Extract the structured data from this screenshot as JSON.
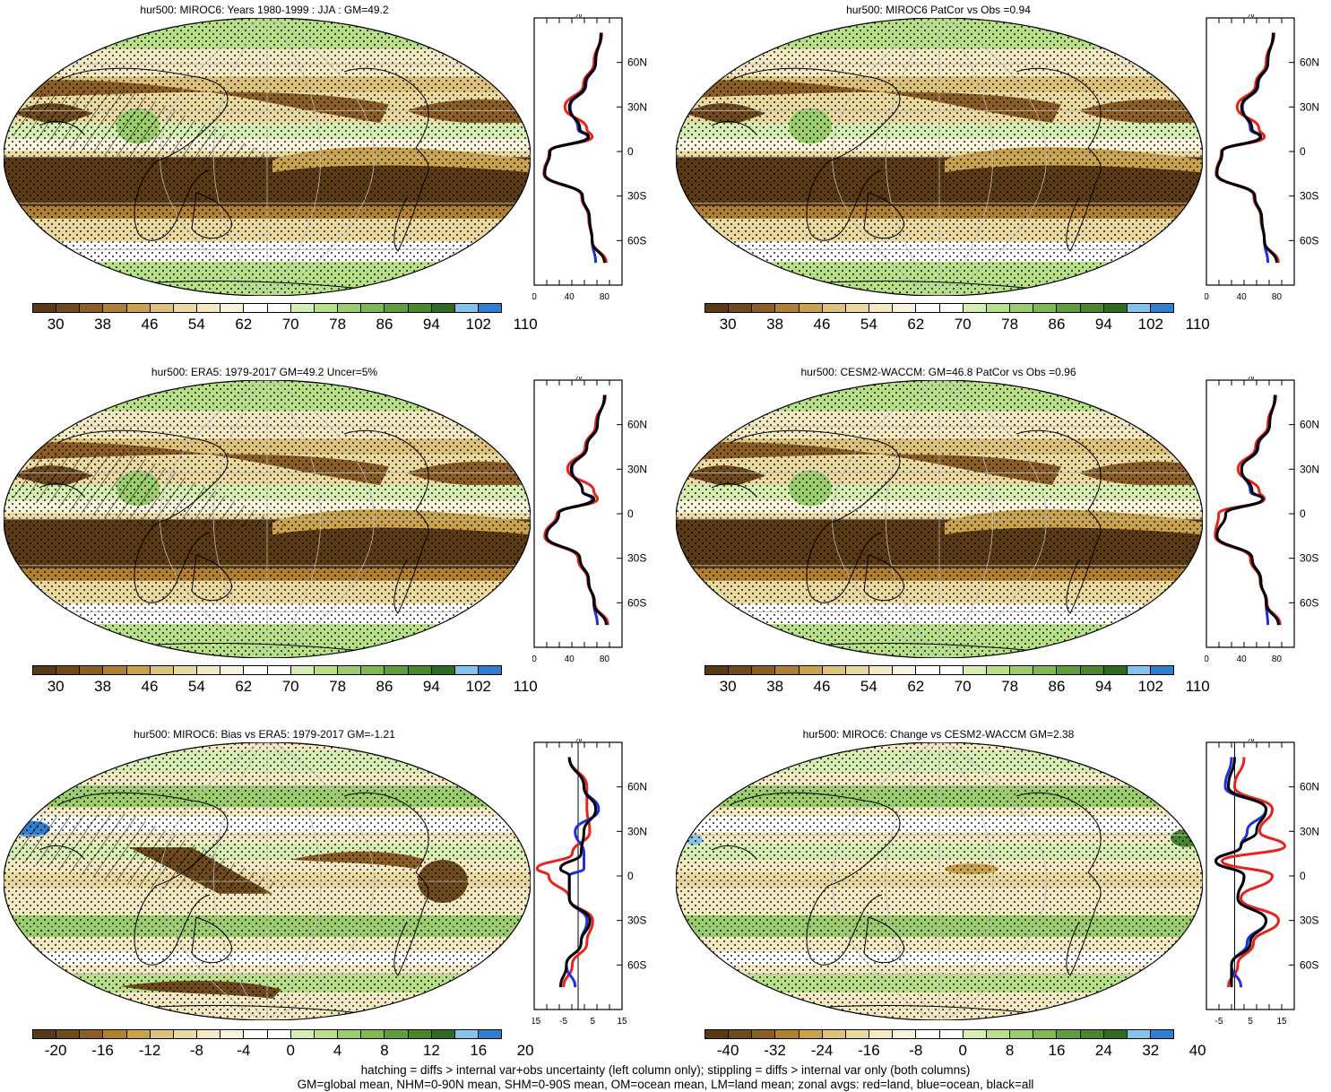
{
  "panels": [
    {
      "id": "p1",
      "title": "hur500: MIROC6: Years 1980-1999 : JJA : GM=49.2",
      "kind": "abs",
      "hatch": true,
      "colorbar_labels": [
        "30",
        "38",
        "46",
        "54",
        "62",
        "70",
        "78",
        "86",
        "94",
        "102",
        "110"
      ],
      "zonal_ticks": [
        "0",
        "40",
        "80"
      ],
      "zonal_xlim": [
        0,
        100
      ]
    },
    {
      "id": "p2",
      "title": "hur500: MIROC6 PatCor vs Obs =0.94",
      "kind": "abs",
      "hatch": false,
      "colorbar_labels": [
        "30",
        "38",
        "46",
        "54",
        "62",
        "70",
        "78",
        "86",
        "94",
        "102",
        "110"
      ],
      "zonal_ticks": [
        "0",
        "40",
        "80"
      ],
      "zonal_xlim": [
        0,
        100
      ]
    },
    {
      "id": "p3",
      "title": "hur500: ERA5: 1979-2017 GM=49.2 Uncer=5%",
      "kind": "abs",
      "hatch": true,
      "colorbar_labels": [
        "30",
        "38",
        "46",
        "54",
        "62",
        "70",
        "78",
        "86",
        "94",
        "102",
        "110"
      ],
      "zonal_ticks": [
        "0",
        "40",
        "80"
      ],
      "zonal_xlim": [
        0,
        100
      ]
    },
    {
      "id": "p4",
      "title": "hur500: CESM2-WACCM: GM=46.8 PatCor vs Obs =0.96",
      "kind": "abs",
      "hatch": false,
      "colorbar_labels": [
        "30",
        "38",
        "46",
        "54",
        "62",
        "70",
        "78",
        "86",
        "94",
        "102",
        "110"
      ],
      "zonal_ticks": [
        "0",
        "40",
        "80"
      ],
      "zonal_xlim": [
        0,
        100
      ]
    },
    {
      "id": "p5",
      "title": "hur500: MIROC6: Bias vs ERA5: 1979-2017 GM=-1.21",
      "kind": "bias",
      "hatch": true,
      "colorbar_labels": [
        "-20",
        "-16",
        "-12",
        "-8",
        "-4",
        "0",
        "4",
        "8",
        "12",
        "16",
        "20"
      ],
      "zonal_ticks": [
        "-15",
        "-5",
        "5",
        "15"
      ],
      "zonal_xlim": [
        -15,
        15
      ]
    },
    {
      "id": "p6",
      "title": "hur500: MIROC6: Change vs CESM2-WACCM GM=2.38",
      "kind": "bias",
      "hatch": false,
      "colorbar_labels": [
        "-40",
        "-32",
        "-24",
        "-16",
        "-8",
        "0",
        "8",
        "16",
        "24",
        "32",
        "40"
      ],
      "zonal_ticks": [
        "-5",
        "5",
        "15"
      ],
      "zonal_xlim": [
        -9,
        19
      ]
    }
  ],
  "zonal_unit": "%",
  "lat_labels": [
    "60N",
    "30N",
    "0",
    "30S",
    "60S"
  ],
  "palette": [
    "#5a3a12",
    "#6e4a1c",
    "#8b5e24",
    "#b08030",
    "#c9a24c",
    "#dcc27a",
    "#ebd9a2",
    "#f3e9c4",
    "#f7f3dd",
    "#ffffff",
    "#ffffff",
    "#d6edb4",
    "#b8df8a",
    "#9ccd6c",
    "#7fb950",
    "#5f9e3c",
    "#4a862e",
    "#2f6a22",
    "#86c3ea",
    "#2f7fd0"
  ],
  "chart_data": [
    {
      "type": "heatmap",
      "title": "hur500: MIROC6: Years 1980-1999 : JJA : GM=49.2",
      "lat": [
        80,
        60,
        45,
        30,
        15,
        10,
        0,
        -15,
        -30,
        -45,
        -60,
        -75
      ],
      "zonal_mean_all": [
        76,
        70,
        58,
        40,
        52,
        62,
        18,
        12,
        55,
        63,
        66,
        80
      ],
      "zonal_mean_land": [
        77,
        68,
        56,
        35,
        60,
        66,
        17,
        11,
        54,
        62,
        66,
        82
      ],
      "zonal_mean_ocean": [
        76,
        70,
        59,
        41,
        50,
        61,
        18,
        12,
        55,
        63,
        66,
        70
      ]
    },
    {
      "type": "heatmap",
      "title": "hur500: MIROC6 PatCor vs Obs =0.94",
      "lat": [
        80,
        60,
        45,
        30,
        15,
        10,
        0,
        -15,
        -30,
        -45,
        -60,
        -75
      ],
      "zonal_mean_all": [
        76,
        70,
        58,
        40,
        52,
        62,
        18,
        12,
        55,
        63,
        66,
        80
      ],
      "zonal_mean_land": [
        77,
        68,
        56,
        35,
        60,
        66,
        17,
        11,
        54,
        62,
        66,
        82
      ],
      "zonal_mean_ocean": [
        76,
        70,
        59,
        41,
        50,
        61,
        18,
        12,
        55,
        63,
        66,
        70
      ]
    },
    {
      "type": "heatmap",
      "title": "hur500: ERA5: 1979-2017 GM=49.2 Uncer=5%",
      "lat": [
        80,
        60,
        45,
        30,
        15,
        10,
        0,
        -15,
        -30,
        -45,
        -60,
        -75
      ],
      "zonal_mean_all": [
        80,
        72,
        60,
        42,
        55,
        68,
        28,
        14,
        52,
        62,
        68,
        82
      ],
      "zonal_mean_land": [
        81,
        70,
        58,
        38,
        68,
        72,
        26,
        12,
        50,
        61,
        69,
        84
      ],
      "zonal_mean_ocean": [
        80,
        72,
        60,
        43,
        55,
        66,
        28,
        14,
        52,
        62,
        68,
        72
      ]
    },
    {
      "type": "heatmap",
      "title": "hur500: CESM2-WACCM: GM=46.8 PatCor vs Obs =0.96",
      "lat": [
        80,
        60,
        45,
        30,
        15,
        10,
        0,
        -15,
        -30,
        -45,
        -60,
        -75
      ],
      "zonal_mean_all": [
        78,
        72,
        58,
        40,
        52,
        64,
        22,
        12,
        52,
        62,
        68,
        82
      ],
      "zonal_mean_land": [
        79,
        70,
        56,
        36,
        60,
        66,
        14,
        10,
        50,
        61,
        69,
        84
      ],
      "zonal_mean_ocean": [
        78,
        72,
        59,
        40,
        50,
        64,
        22,
        12,
        52,
        62,
        68,
        70
      ]
    },
    {
      "type": "heatmap",
      "title": "hur500: MIROC6: Bias vs ERA5: 1979-2017 GM=-1.21",
      "lat": [
        80,
        60,
        45,
        30,
        15,
        5,
        0,
        -15,
        -30,
        -45,
        -60,
        -75
      ],
      "zonal_mean_all": [
        -3,
        2,
        6,
        2,
        1,
        -6,
        -3,
        -3,
        4,
        1,
        -4,
        -6
      ],
      "zonal_mean_land": [
        -3,
        3,
        3,
        4,
        -2,
        -14,
        -10,
        -3,
        5,
        3,
        -2,
        -5
      ],
      "zonal_mean_ocean": [
        -3,
        2,
        7,
        -1,
        2,
        2,
        -3,
        -3,
        3,
        1,
        -4,
        -1
      ]
    },
    {
      "type": "heatmap",
      "title": "hur500: MIROC6: Change vs CESM2-WACCM GM=2.38",
      "lat": [
        80,
        60,
        45,
        30,
        20,
        10,
        0,
        -15,
        -30,
        -45,
        -60,
        -75
      ],
      "zonal_mean_all": [
        0,
        -2,
        10,
        7,
        2,
        -6,
        3,
        1,
        10,
        5,
        -1,
        -1
      ],
      "zonal_mean_land": [
        3,
        0,
        12,
        8,
        16,
        -4,
        12,
        2,
        14,
        6,
        1,
        -2
      ],
      "zonal_mean_ocean": [
        -1,
        -3,
        10,
        4,
        2,
        -6,
        3,
        1,
        10,
        4,
        -1,
        2
      ]
    }
  ],
  "footer": {
    "line1": "hatching = diffs > internal var+obs uncertainty (left column only); stippling = diffs > internal var only (both columns)",
    "line2": "GM=global mean, NHM=0-90N mean, SHM=0-90S mean, OM=ocean mean, LM=land mean; zonal avgs: red=land, blue=ocean, black=all"
  }
}
